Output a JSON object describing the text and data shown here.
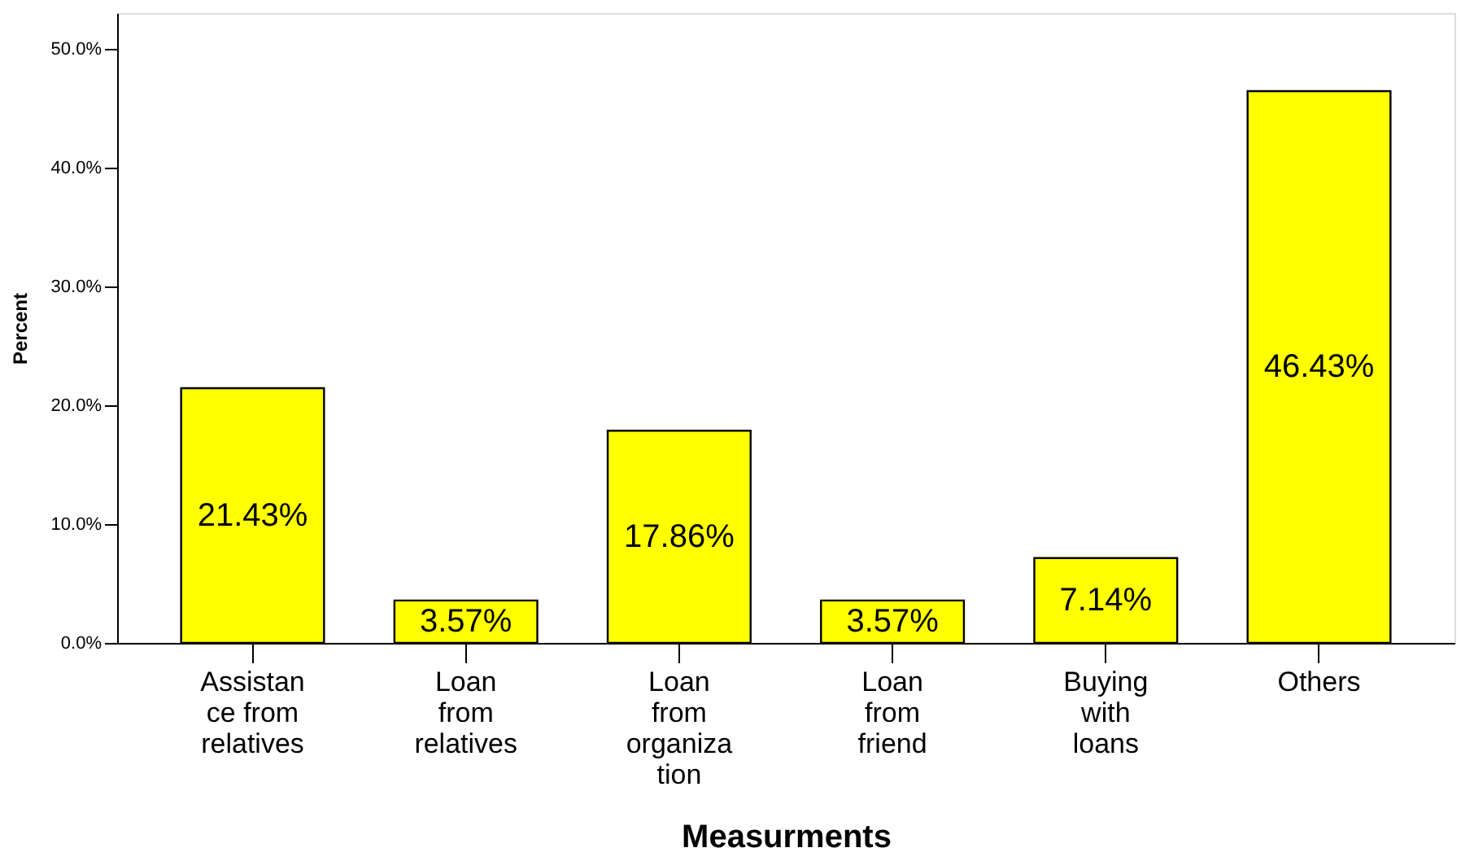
{
  "chart_data": {
    "type": "bar",
    "xlabel": "Measurments",
    "ylabel": "Percent",
    "categories": [
      "Assistan\nce from\nrelatives",
      "Loan\nfrom\nrelatives",
      "Loan\nfrom\norganiza\ntion",
      "Loan\nfrom\nfriend",
      "Buying\nwith\nloans",
      "Others"
    ],
    "values": [
      21.43,
      3.57,
      17.86,
      3.57,
      7.14,
      46.43
    ],
    "value_labels": [
      "21.43%",
      "3.57%",
      "17.86%",
      "3.57%",
      "7.14%",
      "46.43%"
    ],
    "color": "#ffff00",
    "ylim": [
      0,
      53
    ],
    "yticks": [
      {
        "value": 0,
        "label": "0.0%"
      },
      {
        "value": 10,
        "label": "10.0%"
      },
      {
        "value": 20,
        "label": "20.0%"
      },
      {
        "value": 30,
        "label": "30.0%"
      },
      {
        "value": 40,
        "label": "40.0%"
      },
      {
        "value": 50,
        "label": "50.0%"
      }
    ],
    "grid": false
  }
}
